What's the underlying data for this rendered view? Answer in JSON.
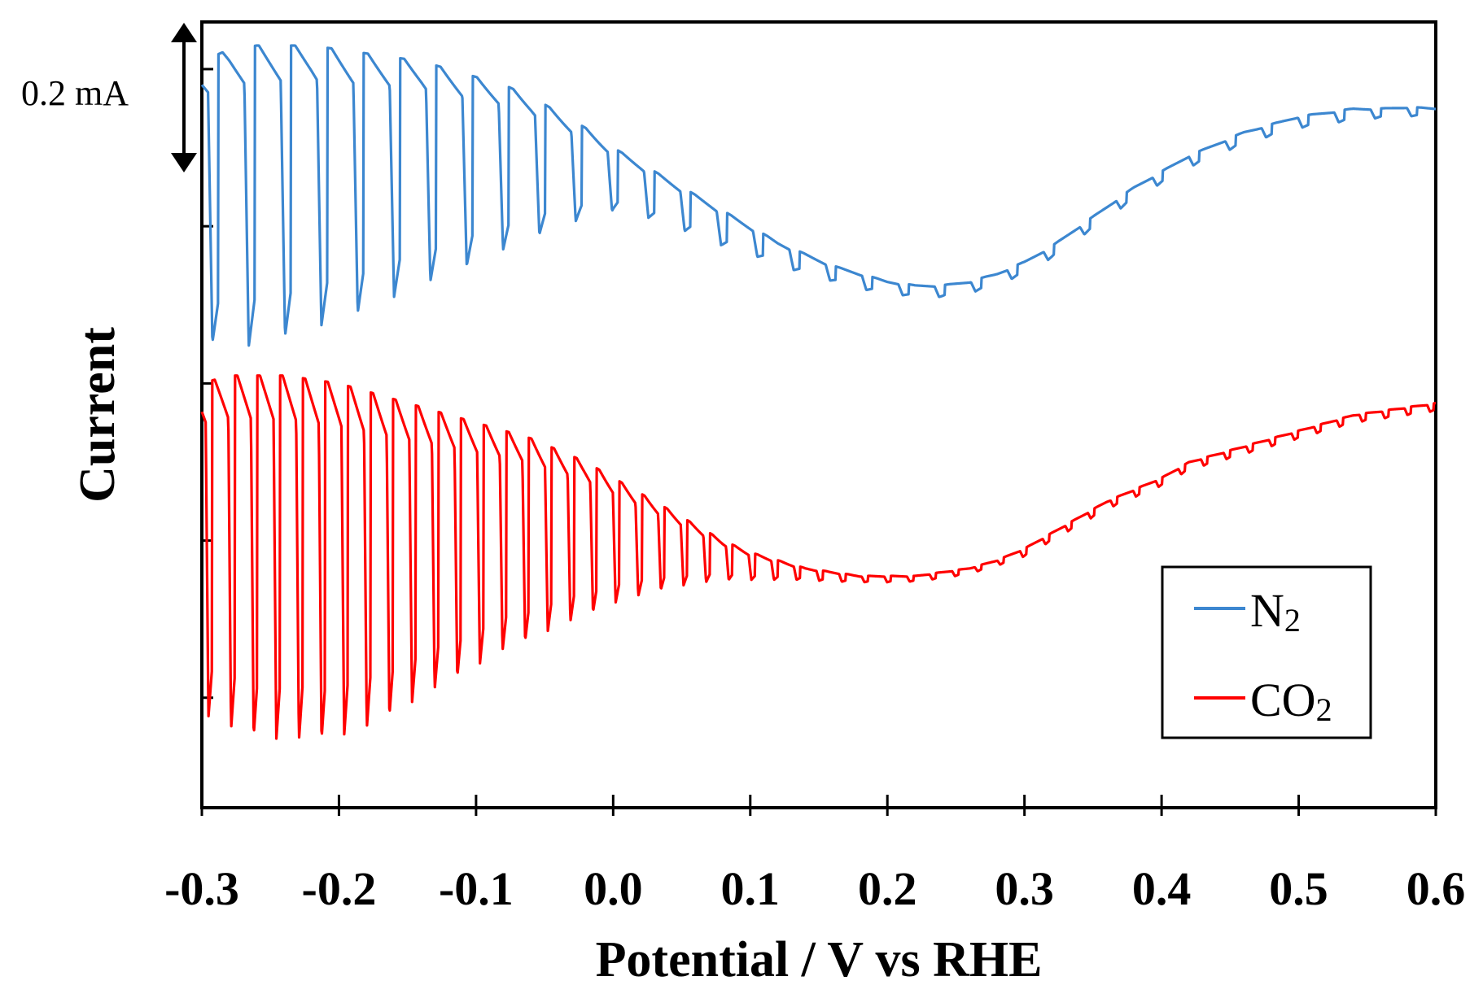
{
  "chart_data": {
    "type": "line",
    "title": "",
    "xlabel": "Potential / V vs RHE",
    "ylabel": "Current",
    "xlim": [
      -0.3,
      0.6
    ],
    "x_ticks": [
      "-0.3",
      "-0.2",
      "-0.1",
      "0.0",
      "0.1",
      "0.2",
      "0.3",
      "0.4",
      "0.5",
      "0.6"
    ],
    "y_scale_bar": {
      "label": "0.2 mA",
      "value_mA": 0.2
    },
    "ylim_mA": [
      -0.14,
      0.86
    ],
    "y_ticks_mA": [
      0.0,
      0.2,
      0.4,
      0.6,
      0.8
    ],
    "legend": {
      "position": "bottom-right",
      "entries": [
        "N2",
        "CO2"
      ]
    },
    "series": [
      {
        "name": "N2",
        "label_main": "N",
        "label_sub": "2",
        "color": "#3c87d0",
        "pulse_period_V": 0.0265,
        "x": [
          -0.3,
          -0.28,
          -0.26,
          -0.24,
          -0.22,
          -0.2,
          -0.18,
          -0.16,
          -0.14,
          -0.12,
          -0.1,
          -0.08,
          -0.06,
          -0.04,
          -0.02,
          0.0,
          0.02,
          0.04,
          0.06,
          0.08,
          0.1,
          0.12,
          0.14,
          0.16,
          0.18,
          0.2,
          0.22,
          0.24,
          0.26,
          0.28,
          0.3,
          0.32,
          0.34,
          0.36,
          0.38,
          0.4,
          0.42,
          0.44,
          0.46,
          0.48,
          0.5,
          0.52,
          0.54,
          0.56,
          0.58,
          0.6
        ],
        "upper": [
          0.81,
          0.825,
          0.83,
          0.83,
          0.83,
          0.825,
          0.82,
          0.815,
          0.81,
          0.8,
          0.79,
          0.78,
          0.765,
          0.745,
          0.725,
          0.7,
          0.68,
          0.66,
          0.64,
          0.62,
          0.6,
          0.58,
          0.565,
          0.55,
          0.54,
          0.53,
          0.525,
          0.525,
          0.53,
          0.54,
          0.555,
          0.575,
          0.6,
          0.625,
          0.65,
          0.67,
          0.69,
          0.705,
          0.72,
          0.73,
          0.74,
          0.745,
          0.75,
          0.75,
          0.752,
          0.75
        ],
        "lower": [
          0.46,
          0.44,
          0.45,
          0.46,
          0.47,
          0.48,
          0.495,
          0.51,
          0.525,
          0.54,
          0.555,
          0.57,
          0.585,
          0.6,
          0.61,
          0.62,
          0.615,
          0.6,
          0.59,
          0.575,
          0.565,
          0.55,
          0.54,
          0.53,
          0.52,
          0.515,
          0.51,
          0.51,
          0.515,
          0.525,
          0.54,
          0.56,
          0.585,
          0.61,
          0.635,
          0.655,
          0.675,
          0.69,
          0.705,
          0.715,
          0.725,
          0.73,
          0.735,
          0.738,
          0.74,
          0.74
        ]
      },
      {
        "name": "CO2",
        "label_main": "CO",
        "label_sub": "2",
        "color": "#ff0000",
        "pulse_period_V": 0.0165,
        "x": [
          -0.3,
          -0.28,
          -0.26,
          -0.24,
          -0.22,
          -0.2,
          -0.18,
          -0.16,
          -0.14,
          -0.12,
          -0.1,
          -0.08,
          -0.06,
          -0.04,
          -0.02,
          0.0,
          0.02,
          0.04,
          0.06,
          0.08,
          0.1,
          0.12,
          0.14,
          0.16,
          0.18,
          0.2,
          0.22,
          0.24,
          0.26,
          0.28,
          0.3,
          0.32,
          0.34,
          0.36,
          0.38,
          0.4,
          0.42,
          0.44,
          0.46,
          0.48,
          0.5,
          0.52,
          0.54,
          0.56,
          0.58,
          0.6
        ],
        "upper": [
          0.4,
          0.41,
          0.41,
          0.41,
          0.405,
          0.4,
          0.39,
          0.38,
          0.37,
          0.36,
          0.35,
          0.34,
          0.33,
          0.315,
          0.3,
          0.28,
          0.26,
          0.24,
          0.22,
          0.2,
          0.185,
          0.175,
          0.165,
          0.16,
          0.155,
          0.155,
          0.155,
          0.16,
          0.165,
          0.175,
          0.19,
          0.21,
          0.23,
          0.25,
          0.265,
          0.28,
          0.3,
          0.31,
          0.32,
          0.33,
          0.34,
          0.35,
          0.36,
          0.365,
          0.37,
          0.375
        ],
        "lower": [
          -0.02,
          -0.04,
          -0.05,
          -0.055,
          -0.055,
          -0.05,
          -0.04,
          -0.02,
          0.0,
          0.02,
          0.04,
          0.06,
          0.075,
          0.09,
          0.105,
          0.12,
          0.13,
          0.14,
          0.145,
          0.15,
          0.15,
          0.15,
          0.15,
          0.148,
          0.147,
          0.147,
          0.148,
          0.152,
          0.158,
          0.168,
          0.18,
          0.2,
          0.22,
          0.24,
          0.255,
          0.27,
          0.29,
          0.3,
          0.31,
          0.32,
          0.33,
          0.34,
          0.35,
          0.355,
          0.36,
          0.365
        ]
      }
    ]
  }
}
